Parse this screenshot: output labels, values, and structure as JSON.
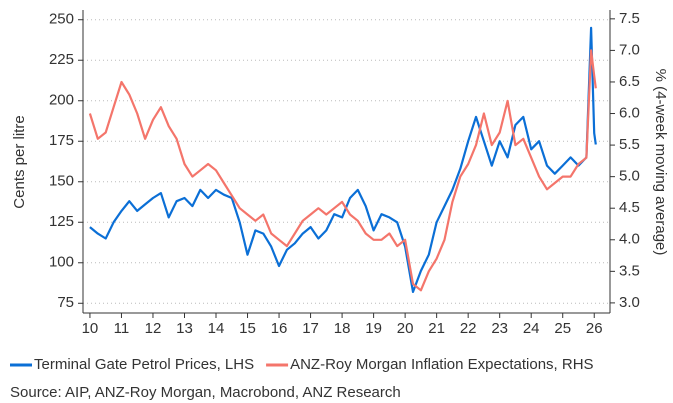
{
  "chart_data": {
    "type": "line",
    "y_label": "Cents per litre",
    "y2_label": "% (4-week moving average)",
    "source": "Source: AIP, ANZ-Roy Morgan, Macrobond, ANZ Research",
    "xlim": [
      9.78,
      26.5
    ],
    "xticks": [
      10,
      11,
      12,
      13,
      14,
      15,
      16,
      17,
      18,
      19,
      20,
      21,
      22,
      23,
      24,
      25,
      26
    ],
    "ylim": [
      69,
      256
    ],
    "yticks": [
      75,
      100,
      125,
      150,
      175,
      200,
      225,
      250
    ],
    "y2lim": [
      2.84,
      7.64
    ],
    "y2ticks": [
      {
        "value": 3,
        "label": "3.0"
      },
      3.5,
      {
        "value": 4,
        "label": "4.0"
      },
      4.5,
      {
        "value": 5,
        "label": "5.0"
      },
      5.5,
      {
        "value": 6,
        "label": "6.0"
      },
      6.5,
      {
        "value": 7,
        "label": "7.0"
      },
      7.5
    ],
    "grid": true,
    "legend": "bottom",
    "series": [
      {
        "name": "Terminal Gate Petrol Prices, LHS",
        "color": "#0b6fd6",
        "x": [
          10.0,
          10.25,
          10.5,
          10.75,
          11.0,
          11.25,
          11.5,
          11.75,
          12.0,
          12.25,
          12.5,
          12.75,
          13.0,
          13.25,
          13.5,
          13.75,
          14.0,
          14.25,
          14.5,
          14.75,
          15.0,
          15.25,
          15.5,
          15.75,
          16.0,
          16.25,
          16.5,
          16.75,
          17.0,
          17.25,
          17.5,
          17.75,
          18.0,
          18.25,
          18.5,
          18.75,
          19.0,
          19.25,
          19.5,
          19.75,
          20.0,
          20.25,
          20.5,
          20.75,
          21.0,
          21.25,
          21.5,
          21.75,
          22.0,
          22.25,
          22.5,
          22.75,
          23.0,
          23.25,
          23.5,
          23.75,
          24.0,
          24.25,
          24.5,
          24.75,
          25.0,
          25.25,
          25.5,
          25.75,
          25.9,
          26.0,
          26.05
        ],
        "values": [
          122,
          118,
          115,
          125,
          132,
          138,
          132,
          136,
          140,
          143,
          128,
          138,
          140,
          135,
          145,
          140,
          145,
          142,
          140,
          125,
          105,
          120,
          118,
          110,
          98,
          108,
          112,
          118,
          122,
          115,
          120,
          130,
          128,
          140,
          145,
          135,
          120,
          130,
          128,
          125,
          110,
          82,
          95,
          105,
          125,
          135,
          145,
          158,
          175,
          190,
          175,
          160,
          175,
          165,
          185,
          190,
          170,
          175,
          160,
          155,
          160,
          165,
          160,
          165,
          245,
          180,
          173
        ]
      },
      {
        "name": "ANZ-Roy Morgan Inflation Expectations, RHS",
        "color": "#f4756b",
        "axis": "y2",
        "x": [
          10.0,
          10.25,
          10.5,
          10.75,
          11.0,
          11.25,
          11.5,
          11.75,
          12.0,
          12.25,
          12.5,
          12.75,
          13.0,
          13.25,
          13.5,
          13.75,
          14.0,
          14.25,
          14.5,
          14.75,
          15.0,
          15.25,
          15.5,
          15.75,
          16.0,
          16.25,
          16.5,
          16.75,
          17.0,
          17.25,
          17.5,
          17.75,
          18.0,
          18.25,
          18.5,
          18.75,
          19.0,
          19.25,
          19.5,
          19.75,
          20.0,
          20.25,
          20.5,
          20.75,
          21.0,
          21.25,
          21.5,
          21.75,
          22.0,
          22.25,
          22.5,
          22.75,
          23.0,
          23.25,
          23.5,
          23.75,
          24.0,
          24.25,
          24.5,
          24.75,
          25.0,
          25.25,
          25.5,
          25.75,
          25.9,
          26.0,
          26.05
        ],
        "values": [
          6.0,
          5.6,
          5.7,
          6.1,
          6.5,
          6.3,
          6.0,
          5.6,
          5.9,
          6.1,
          5.8,
          5.6,
          5.2,
          5.0,
          5.1,
          5.2,
          5.1,
          4.9,
          4.7,
          4.5,
          4.4,
          4.3,
          4.4,
          4.1,
          4.0,
          3.9,
          4.1,
          4.3,
          4.4,
          4.5,
          4.4,
          4.5,
          4.6,
          4.4,
          4.3,
          4.1,
          4.0,
          4.0,
          4.1,
          3.9,
          4.0,
          3.3,
          3.2,
          3.5,
          3.7,
          4.0,
          4.6,
          5.0,
          5.2,
          5.5,
          6.0,
          5.5,
          5.7,
          6.2,
          5.5,
          5.6,
          5.3,
          5.0,
          4.8,
          4.9,
          5.0,
          5.0,
          5.2,
          5.3,
          7.0,
          6.6,
          6.4
        ]
      }
    ]
  }
}
